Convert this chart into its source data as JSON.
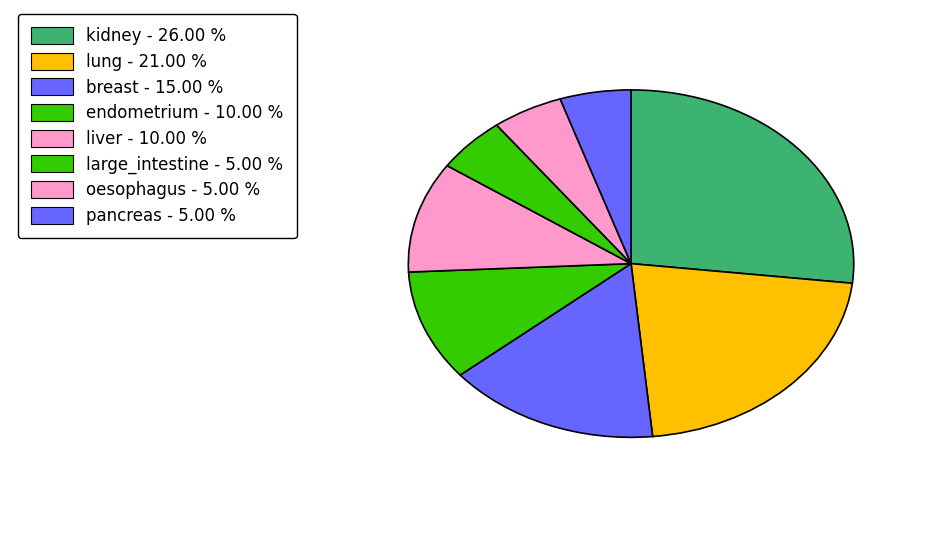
{
  "labels": [
    "kidney",
    "lung",
    "breast",
    "endometrium",
    "liver",
    "large_intestine",
    "oesophagus",
    "pancreas"
  ],
  "values": [
    26,
    21,
    15,
    10,
    10,
    5,
    5,
    5
  ],
  "colors": [
    "#3cb371",
    "#ffc000",
    "#6666ff",
    "#33cc00",
    "#ff99cc",
    "#33cc00",
    "#ff99cc",
    "#6666ff"
  ],
  "legend_labels": [
    "kidney - 26.00 %",
    "lung - 21.00 %",
    "breast - 15.00 %",
    "endometrium - 10.00 %",
    "liver - 10.00 %",
    "large_intestine - 5.00 %",
    "oesophagus - 5.00 %",
    "pancreas - 5.00 %"
  ],
  "legend_colors": [
    "#3cb371",
    "#ffc000",
    "#6666ff",
    "#33cc00",
    "#ff99cc",
    "#33cc00",
    "#ff99cc",
    "#6666ff"
  ],
  "background_color": "#ffffff",
  "startangle": 90,
  "figsize": [
    9.28,
    5.38
  ],
  "dpi": 100
}
